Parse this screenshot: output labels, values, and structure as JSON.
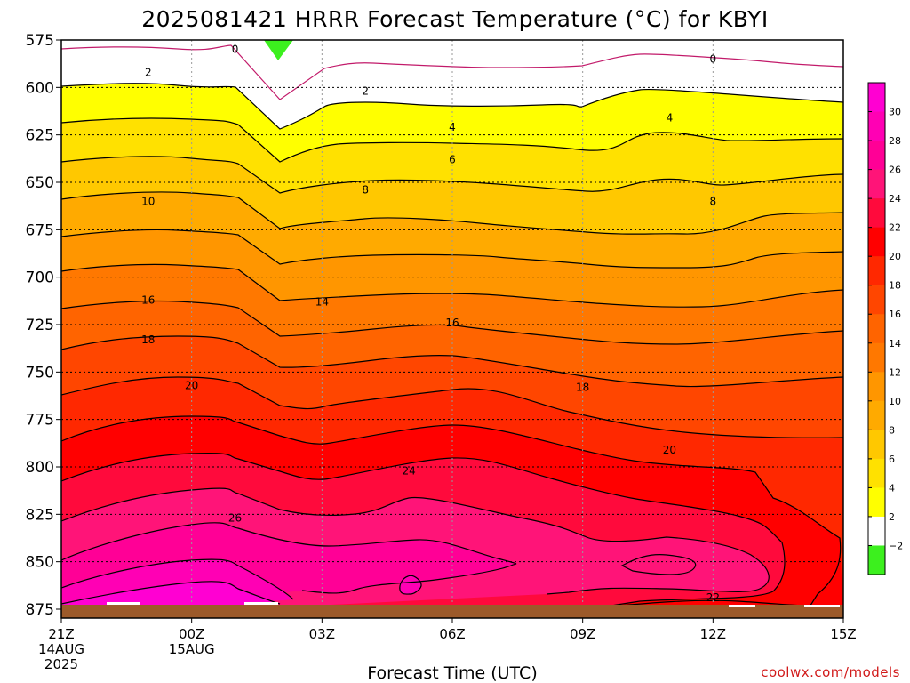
{
  "chart_data": {
    "type": "contour",
    "title": "2025081421 HRRR Forecast Temperature (°C) for KBYI",
    "xlabel": "Forecast Time (UTC)",
    "ylabel": "",
    "credit": "coolwx.com/models",
    "y_axis": {
      "ticks": [
        575,
        600,
        625,
        650,
        675,
        700,
        725,
        750,
        775,
        800,
        825,
        850,
        875
      ],
      "range": [
        575,
        875
      ],
      "units": "hPa"
    },
    "x_axis": {
      "range_hours": [
        0,
        18
      ],
      "ticks": [
        {
          "hour": 0,
          "lines": [
            "21Z",
            "14AUG",
            "2025"
          ]
        },
        {
          "hour": 3,
          "lines": [
            "00Z",
            "15AUG"
          ]
        },
        {
          "hour": 6,
          "lines": [
            "03Z"
          ]
        },
        {
          "hour": 9,
          "lines": [
            "06Z"
          ]
        },
        {
          "hour": 12,
          "lines": [
            "09Z"
          ]
        },
        {
          "hour": 15,
          "lines": [
            "12Z"
          ]
        },
        {
          "hour": 18,
          "lines": [
            "15Z"
          ]
        }
      ]
    },
    "colorbar": {
      "labels": [
        "30",
        "28",
        "26",
        "24",
        "22",
        "20",
        "18",
        "16",
        "14",
        "12",
        "10",
        "8",
        "6",
        "4",
        "2",
        "−2"
      ],
      "colors": [
        "#ff00d2",
        "#ff00b4",
        "#ff0096",
        "#ff1478",
        "#ff0a3c",
        "#ff0000",
        "#ff2800",
        "#ff4600",
        "#ff6400",
        "#ff7800",
        "#ff9600",
        "#ffaa00",
        "#ffc800",
        "#ffe100",
        "#ffff00",
        "#ffffff",
        "#3cf01e"
      ]
    },
    "contour_labels": [
      {
        "value": "0",
        "hour": 4.0,
        "p": 580
      },
      {
        "value": "0",
        "hour": 15.0,
        "p": 585
      },
      {
        "value": "2",
        "hour": 2.0,
        "p": 592
      },
      {
        "value": "2",
        "hour": 7.0,
        "p": 602
      },
      {
        "value": "4",
        "hour": 9.0,
        "p": 621
      },
      {
        "value": "4",
        "hour": 14.0,
        "p": 616
      },
      {
        "value": "6",
        "hour": 9.0,
        "p": 638
      },
      {
        "value": "8",
        "hour": 7.0,
        "p": 654
      },
      {
        "value": "8",
        "hour": 15.0,
        "p": 660
      },
      {
        "value": "10",
        "hour": 2.0,
        "p": 660
      },
      {
        "value": "14",
        "hour": 6.0,
        "p": 713
      },
      {
        "value": "16",
        "hour": 2.0,
        "p": 712
      },
      {
        "value": "16",
        "hour": 9.0,
        "p": 724
      },
      {
        "value": "18",
        "hour": 2.0,
        "p": 733
      },
      {
        "value": "18",
        "hour": 12.0,
        "p": 758
      },
      {
        "value": "20",
        "hour": 3.0,
        "p": 757
      },
      {
        "value": "20",
        "hour": 14.0,
        "p": 791
      },
      {
        "value": "22",
        "hour": 15.0,
        "p": 869
      },
      {
        "value": "24",
        "hour": 8.0,
        "p": 802
      },
      {
        "value": "26",
        "hour": 4.0,
        "p": 827
      }
    ]
  }
}
